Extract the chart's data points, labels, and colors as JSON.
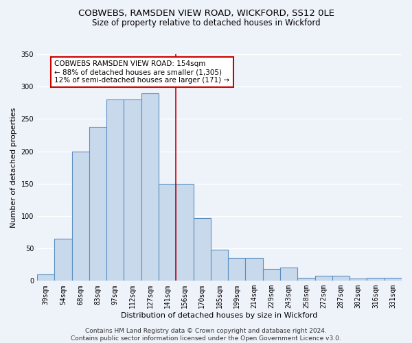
{
  "title_line1": "COBWEBS, RAMSDEN VIEW ROAD, WICKFORD, SS12 0LE",
  "title_line2": "Size of property relative to detached houses in Wickford",
  "xlabel": "Distribution of detached houses by size in Wickford",
  "ylabel": "Number of detached properties",
  "categories": [
    "39sqm",
    "54sqm",
    "68sqm",
    "83sqm",
    "97sqm",
    "112sqm",
    "127sqm",
    "141sqm",
    "156sqm",
    "170sqm",
    "185sqm",
    "199sqm",
    "214sqm",
    "229sqm",
    "243sqm",
    "258sqm",
    "272sqm",
    "287sqm",
    "302sqm",
    "316sqm",
    "331sqm"
  ],
  "values": [
    10,
    65,
    200,
    238,
    280,
    280,
    290,
    150,
    150,
    97,
    48,
    35,
    35,
    18,
    20,
    5,
    8,
    8,
    4,
    5,
    5
  ],
  "bar_color": "#c9d9ec",
  "bar_edge_color": "#5a8fc3",
  "vline_x_index": 8,
  "vline_color": "#cc0000",
  "annotation_box_text": "COBWEBS RAMSDEN VIEW ROAD: 154sqm\n← 88% of detached houses are smaller (1,305)\n12% of semi-detached houses are larger (171) →",
  "box_edge_color": "#cc0000",
  "ylim": [
    0,
    350
  ],
  "yticks": [
    0,
    50,
    100,
    150,
    200,
    250,
    300,
    350
  ],
  "footer_line1": "Contains HM Land Registry data © Crown copyright and database right 2024.",
  "footer_line2": "Contains public sector information licensed under the Open Government Licence v3.0.",
  "background_color": "#eef2f9",
  "grid_color": "#ffffff",
  "title_fontsize": 9.5,
  "subtitle_fontsize": 8.5,
  "axis_label_fontsize": 8,
  "tick_fontsize": 7,
  "annotation_fontsize": 7.5,
  "footer_fontsize": 6.5
}
